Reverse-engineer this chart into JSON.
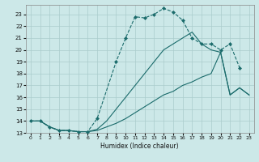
{
  "xlabel": "Humidex (Indice chaleur)",
  "bg_color": "#cce8e8",
  "grid_color": "#aacccc",
  "line_color": "#1a6b6b",
  "xlim": [
    -0.5,
    23.5
  ],
  "ylim": [
    13,
    23.8
  ],
  "yticks": [
    13,
    14,
    15,
    16,
    17,
    18,
    19,
    20,
    21,
    22,
    23
  ],
  "xticks": [
    0,
    1,
    2,
    3,
    4,
    5,
    6,
    7,
    8,
    9,
    10,
    11,
    12,
    13,
    14,
    15,
    16,
    17,
    18,
    19,
    20,
    21,
    22,
    23
  ],
  "s0_x": [
    0,
    1,
    2,
    3,
    4,
    5,
    6,
    7,
    8,
    9,
    10,
    11,
    12,
    13,
    14,
    15,
    16,
    17,
    18,
    19,
    20,
    21,
    22,
    23
  ],
  "s0_y": [
    14,
    14,
    13.5,
    13.2,
    13.2,
    13.1,
    13.1,
    13.2,
    13.5,
    13.8,
    14.2,
    14.7,
    15.2,
    15.7,
    16.2,
    16.5,
    17.0,
    17.3,
    17.7,
    18.0,
    19.8,
    16.2,
    16.8,
    16.2
  ],
  "s1_x": [
    0,
    1,
    2,
    3,
    4,
    5,
    6,
    7,
    8,
    9,
    10,
    11,
    12,
    13,
    14,
    15,
    16,
    17,
    18,
    19,
    20,
    21,
    22,
    23
  ],
  "s1_y": [
    14,
    14,
    13.5,
    13.2,
    13.2,
    13.1,
    13.1,
    13.3,
    14.0,
    15.0,
    16.0,
    17.0,
    18.0,
    19.0,
    20.0,
    20.5,
    21.0,
    21.5,
    20.5,
    20.0,
    19.8,
    16.2,
    16.8,
    16.2
  ],
  "s2_x": [
    0,
    1,
    2,
    3,
    4,
    5,
    6,
    7,
    9,
    10,
    11,
    12,
    13,
    14,
    15,
    16,
    17,
    18,
    19,
    20,
    21,
    22
  ],
  "s2_y": [
    14,
    14,
    13.5,
    13.2,
    13.2,
    13.1,
    13.1,
    14.2,
    19.0,
    21.0,
    22.8,
    22.7,
    23.0,
    23.5,
    23.2,
    22.5,
    21.0,
    20.5,
    20.5,
    20.0,
    20.5,
    18.5
  ]
}
